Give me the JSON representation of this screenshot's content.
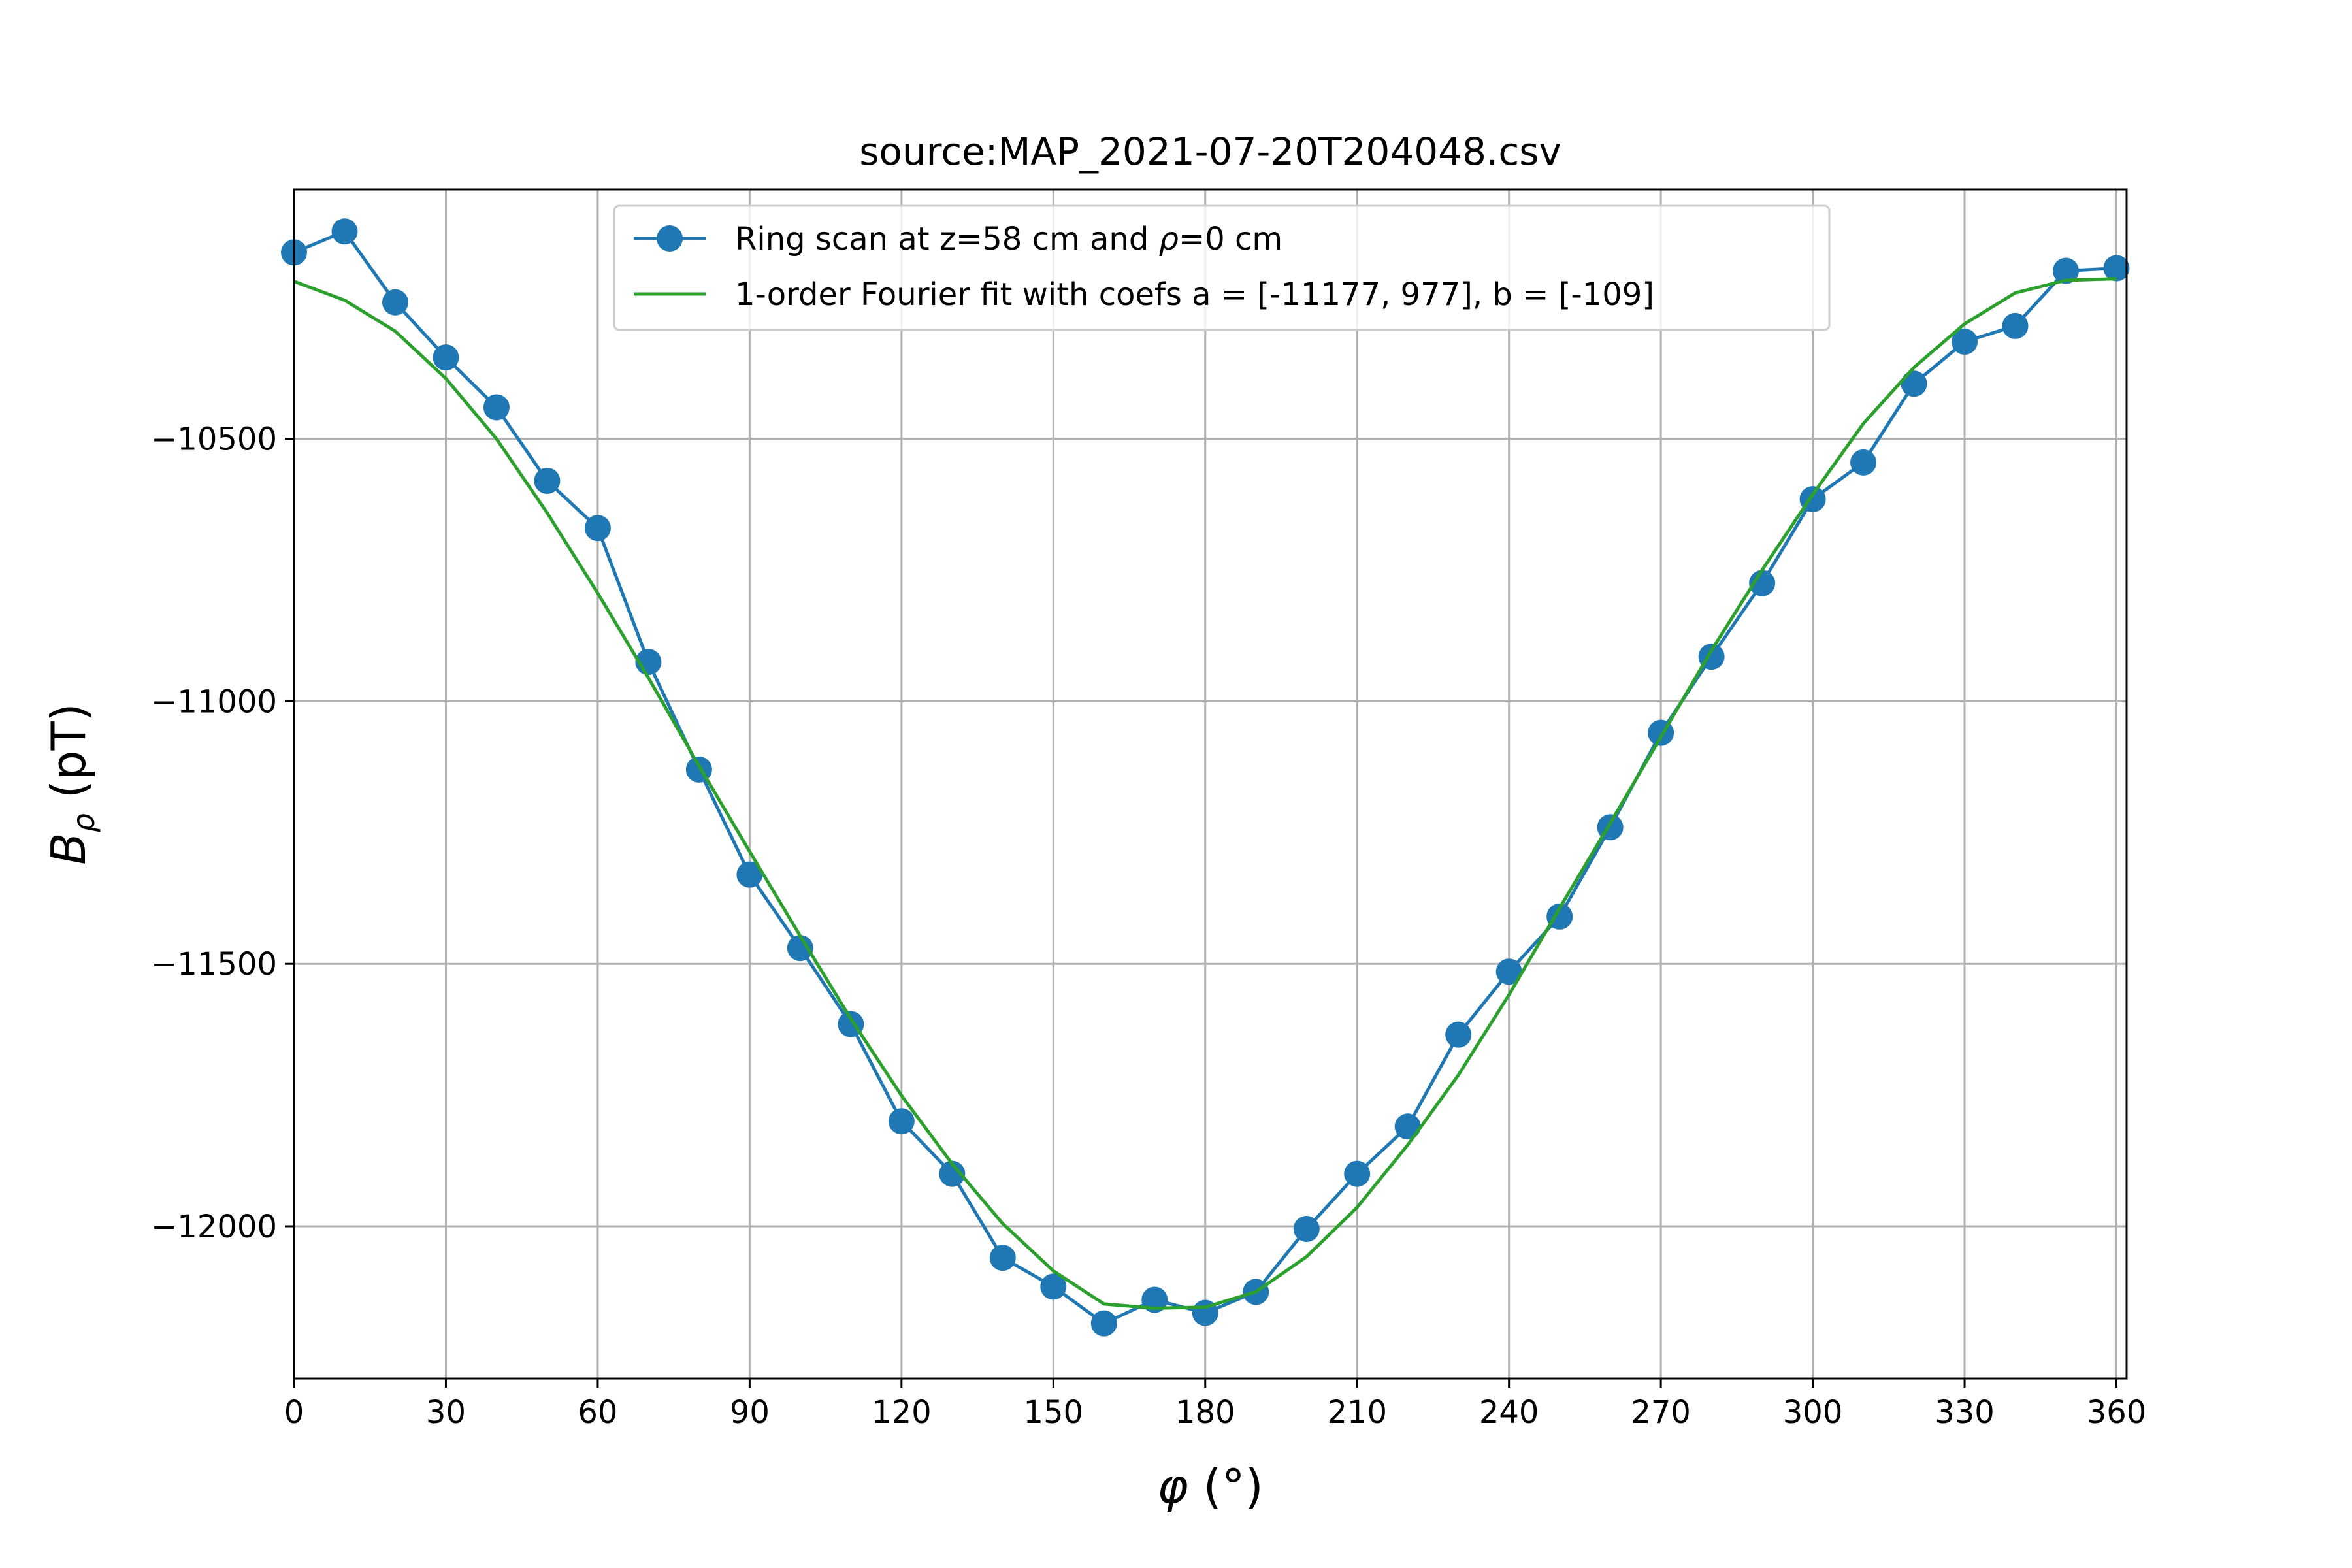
{
  "chart_data": {
    "type": "line",
    "title": "source:MAP_2021-07-20T204048.csv",
    "xlabel_symbol": "φ",
    "xlabel_unit": "(°)",
    "ylabel_symbol": "B",
    "ylabel_subscript": "ρ",
    "ylabel_unit": "(pT)",
    "xlim": [
      0,
      362
    ],
    "ylim": [
      -12290,
      -10025
    ],
    "xticks": [
      0,
      30,
      60,
      90,
      120,
      150,
      180,
      210,
      240,
      270,
      300,
      330,
      360
    ],
    "yticks": [
      -12000,
      -11500,
      -11000,
      -10500
    ],
    "ytick_labels": [
      "−12000",
      "−11500",
      "−11000",
      "−10500"
    ],
    "grid": true,
    "legend_position": "upper center",
    "series": [
      {
        "name_prefix": "Ring scan at z=58 cm and ",
        "name_symbol": "ρ",
        "name_suffix": "=0 cm",
        "color": "#1f77b4",
        "marker": "circle",
        "x": [
          0,
          10,
          20,
          30,
          40,
          50,
          60,
          70,
          80,
          90,
          100,
          110,
          120,
          130,
          140,
          150,
          160,
          170,
          180,
          190,
          200,
          210,
          220,
          230,
          240,
          250,
          260,
          270,
          280,
          290,
          300,
          310,
          320,
          330,
          340,
          350,
          360
        ],
        "y": [
          -10145,
          -10105,
          -10240,
          -10345,
          -10440,
          -10580,
          -10670,
          -10925,
          -11130,
          -11330,
          -11470,
          -11615,
          -11800,
          -11900,
          -12060,
          -12115,
          -12185,
          -12140,
          -12165,
          -12125,
          -12005,
          -11900,
          -11810,
          -11635,
          -11515,
          -11410,
          -11240,
          -11060,
          -10915,
          -10775,
          -10615,
          -10545,
          -10395,
          -10315,
          -10285,
          -10180,
          -10175
        ]
      },
      {
        "name": "1-order Fourier fit with coefs a = [-11177, 977], b = [-109]",
        "color": "#2ca02c",
        "x": [
          0,
          10,
          20,
          30,
          40,
          50,
          60,
          70,
          80,
          90,
          100,
          110,
          120,
          130,
          140,
          150,
          160,
          170,
          180,
          190,
          200,
          210,
          220,
          230,
          240,
          250,
          260,
          270,
          280,
          290,
          300,
          310,
          320,
          330,
          340,
          350,
          360
        ],
        "y": [
          -10200,
          -10236,
          -10295,
          -10385,
          -10500,
          -10641,
          -10794,
          -10955,
          -11123,
          -11286,
          -11447,
          -11605,
          -11751,
          -11881,
          -11995,
          -12085,
          -12148,
          -12156,
          -12154,
          -12125,
          -12058,
          -11964,
          -11845,
          -11712,
          -11559,
          -11394,
          -11232,
          -11068,
          -10903,
          -10750,
          -10606,
          -10471,
          -10364,
          -10281,
          -10222,
          -10198,
          -10195
        ]
      }
    ]
  }
}
